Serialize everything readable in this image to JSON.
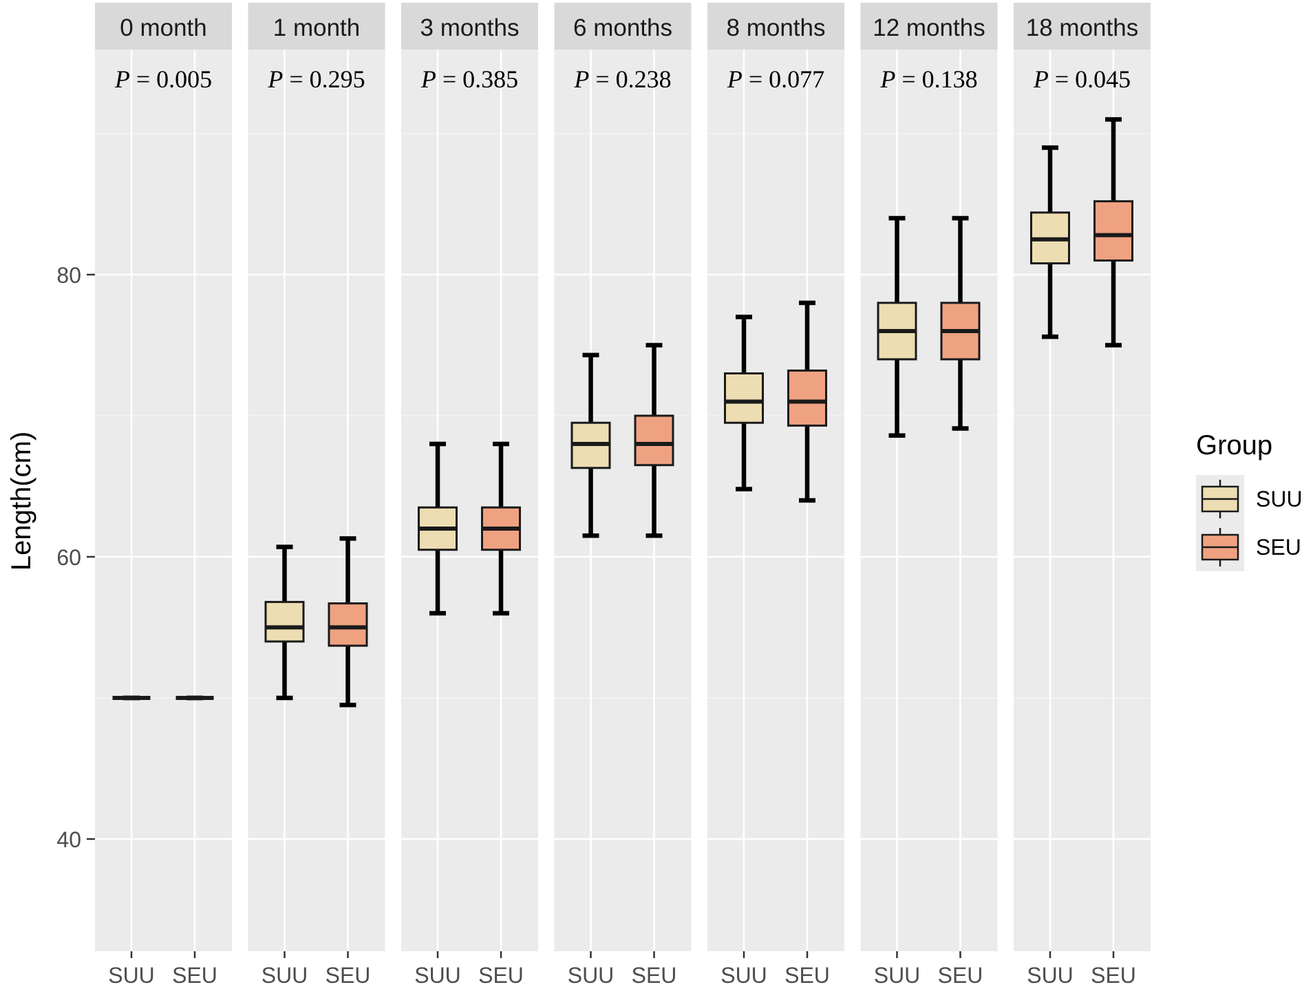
{
  "chart_data": {
    "type": "boxplot",
    "title": "",
    "xlabel": "",
    "ylabel": "Length(cm)",
    "ylim": [
      32,
      98
    ],
    "y_ticks": [
      40,
      60,
      80
    ],
    "x_tick_labels": [
      "SUU",
      "SEU"
    ],
    "legend": {
      "title": "Group",
      "position": "right",
      "entries": [
        {
          "name": "SUU",
          "color": "#EDDDB2"
        },
        {
          "name": "SEU",
          "color": "#EFA282"
        }
      ]
    },
    "panels": [
      {
        "label": "0 month",
        "p_prefix": "P",
        "p_value": "= 0.005",
        "groups": [
          {
            "name": "SUU",
            "min": 50,
            "q1": 50,
            "median": 50,
            "q3": 50,
            "max": 50
          },
          {
            "name": "SEU",
            "min": 50,
            "q1": 50,
            "median": 50,
            "q3": 50,
            "max": 50
          }
        ]
      },
      {
        "label": "1 month",
        "p_prefix": "P",
        "p_value": "= 0.295",
        "groups": [
          {
            "name": "SUU",
            "min": 50,
            "q1": 54,
            "median": 55,
            "q3": 56.8,
            "max": 60.7
          },
          {
            "name": "SEU",
            "min": 49.5,
            "q1": 53.7,
            "median": 55,
            "q3": 56.7,
            "max": 61.3
          }
        ]
      },
      {
        "label": "3 months",
        "p_prefix": "P",
        "p_value": "= 0.385",
        "groups": [
          {
            "name": "SUU",
            "min": 56,
            "q1": 60.5,
            "median": 62,
            "q3": 63.5,
            "max": 68
          },
          {
            "name": "SEU",
            "min": 56,
            "q1": 60.5,
            "median": 62,
            "q3": 63.5,
            "max": 68
          }
        ]
      },
      {
        "label": "6 months",
        "p_prefix": "P",
        "p_value": "= 0.238",
        "groups": [
          {
            "name": "SUU",
            "min": 61.5,
            "q1": 66.3,
            "median": 68,
            "q3": 69.5,
            "max": 74.3
          },
          {
            "name": "SEU",
            "min": 61.5,
            "q1": 66.5,
            "median": 68,
            "q3": 70,
            "max": 75
          }
        ]
      },
      {
        "label": "8 months",
        "p_prefix": "P",
        "p_value": "= 0.077",
        "groups": [
          {
            "name": "SUU",
            "min": 64.8,
            "q1": 69.5,
            "median": 71,
            "q3": 73,
            "max": 77
          },
          {
            "name": "SEU",
            "min": 64,
            "q1": 69.3,
            "median": 71,
            "q3": 73.2,
            "max": 78
          }
        ]
      },
      {
        "label": "12 months",
        "p_prefix": "P",
        "p_value": "= 0.138",
        "groups": [
          {
            "name": "SUU",
            "min": 68.6,
            "q1": 74,
            "median": 76,
            "q3": 78,
            "max": 84
          },
          {
            "name": "SEU",
            "min": 69.1,
            "q1": 74,
            "median": 76,
            "q3": 78,
            "max": 84
          }
        ]
      },
      {
        "label": "18 months",
        "p_prefix": "P",
        "p_value": "= 0.045",
        "groups": [
          {
            "name": "SUU",
            "min": 75.6,
            "q1": 80.8,
            "median": 82.5,
            "q3": 84.4,
            "max": 89
          },
          {
            "name": "SEU",
            "min": 75,
            "q1": 81,
            "median": 82.8,
            "q3": 85.2,
            "max": 91
          }
        ]
      }
    ]
  }
}
